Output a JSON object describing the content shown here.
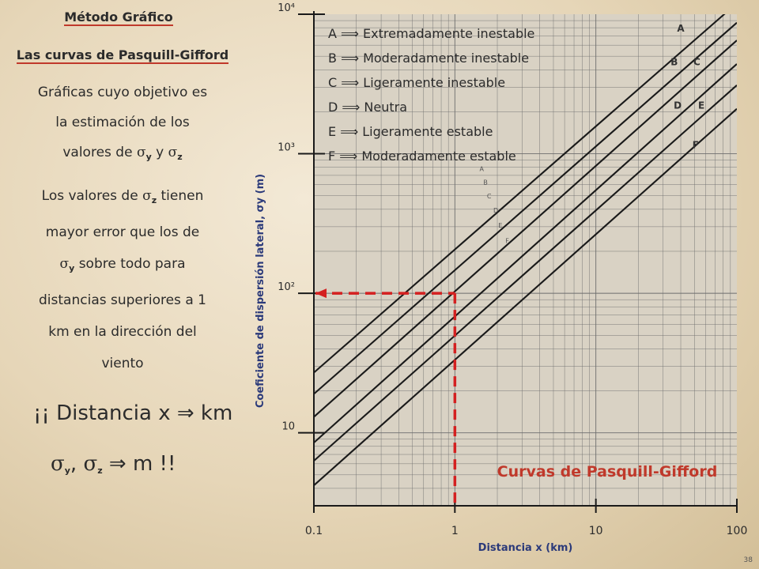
{
  "left_panel": {
    "title": "Método Gráfico",
    "subtitle": "Las curvas de Pasquill-Gifford",
    "p1_lines": [
      "Gráficas cuyo objetivo es",
      "la estimación de los",
      "valores de"
    ],
    "p1_y_and": "y",
    "p2_l1": "Los valores de",
    "p2_l1_end": "tienen",
    "p2_l2": "mayor error que los de",
    "p2_l3": "sobre todo para",
    "p2_l4": "distancias superiores a 1",
    "p2_l5": "km en la dirección del",
    "p2_l6": "viento",
    "ex1": "¡¡ Distancia x ⇒ km",
    "ex2_units": "m !!",
    "sigma_sub_y": "y",
    "sigma_sub_z": "z",
    "page_number": "38"
  },
  "chart_data": {
    "type": "line",
    "title": "Curvas de Pasquill-Gifford",
    "xlabel": "Distancia  x (km)",
    "ylabel": "Coeficiente de dispersión  lateral,  σy (m)",
    "x_scale": "log",
    "y_scale": "log",
    "xlim": [
      0.1,
      100
    ],
    "ylim": [
      3,
      10000
    ],
    "x_ticks": [
      {
        "v": 0.1,
        "label": "0.1"
      },
      {
        "v": 1,
        "label": "1"
      },
      {
        "v": 10,
        "label": "10"
      },
      {
        "v": 100,
        "label": "100"
      }
    ],
    "y_ticks": [
      {
        "v": 10,
        "label": "10"
      },
      {
        "v": 100,
        "label": "10²"
      },
      {
        "v": 1000,
        "label": "10³"
      },
      {
        "v": 10000,
        "label": "10⁴"
      }
    ],
    "legend": [
      "A ⟹ Extremadamente inestable",
      "B ⟹ Moderadamente inestable",
      "C ⟹ Ligeramente inestable",
      "D ⟹ Neutra",
      "E ⟹ Ligeramente estable",
      "F ⟹ Moderadamente estable"
    ],
    "series": [
      {
        "name": "A",
        "x": [
          0.1,
          100
        ],
        "y": [
          27,
          12000
        ]
      },
      {
        "name": "B",
        "x": [
          0.1,
          100
        ],
        "y": [
          19,
          8700
        ]
      },
      {
        "name": "C",
        "x": [
          0.1,
          100
        ],
        "y": [
          13,
          6500
        ]
      },
      {
        "name": "D",
        "x": [
          0.1,
          100
        ],
        "y": [
          8.5,
          4400
        ]
      },
      {
        "name": "E",
        "x": [
          0.1,
          100
        ],
        "y": [
          6.3,
          3100
        ]
      },
      {
        "name": "F",
        "x": [
          0.1,
          100
        ],
        "y": [
          4.2,
          2100
        ]
      }
    ],
    "curve_labels": [
      {
        "name": "A",
        "x": 40,
        "y": 7500
      },
      {
        "name": "B",
        "x": 36,
        "y": 4300
      },
      {
        "name": "C",
        "x": 52,
        "y": 4300
      },
      {
        "name": "D",
        "x": 38,
        "y": 2100
      },
      {
        "name": "E",
        "x": 56,
        "y": 2100
      },
      {
        "name": "F",
        "x": 51,
        "y": 1100
      }
    ],
    "inner_labels": [
      {
        "name": "A",
        "x": 1.55,
        "y": 750
      },
      {
        "name": "B",
        "x": 1.65,
        "y": 600
      },
      {
        "name": "C",
        "x": 1.75,
        "y": 480
      },
      {
        "name": "D",
        "x": 1.95,
        "y": 380
      },
      {
        "name": "E",
        "x": 2.1,
        "y": 295
      },
      {
        "name": "F",
        "x": 2.35,
        "y": 230
      }
    ],
    "annotation": {
      "x": 1,
      "y": 100
    },
    "colors": {
      "curve": "#1a1a1a",
      "grid": "#6e6e6e",
      "axis": "#1a1a1a",
      "accent": "#d42020",
      "title": "#c0392b"
    }
  }
}
